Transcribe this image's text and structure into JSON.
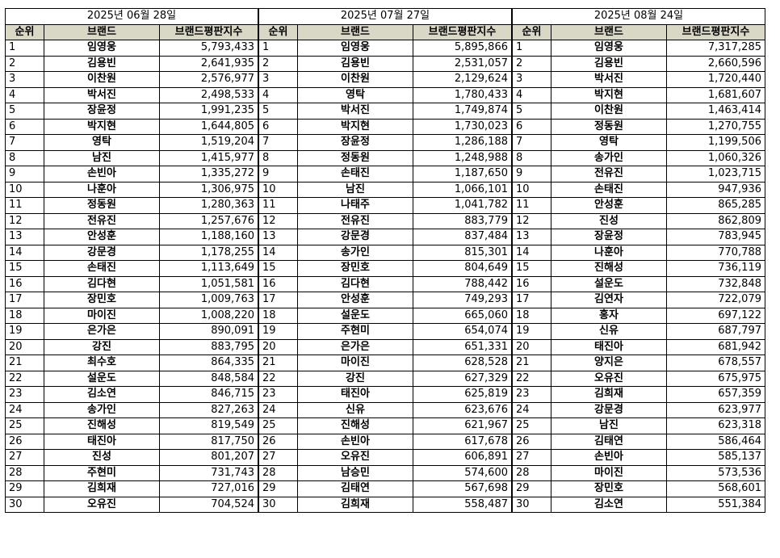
{
  "headers": {
    "rank": "순위",
    "brand": "브랜드",
    "score": "브랜드평판지수"
  },
  "blocks": [
    {
      "date": "2025년 06월 28일",
      "rows": [
        {
          "rank": "1",
          "brand": "임영웅",
          "score": "5,793,433"
        },
        {
          "rank": "2",
          "brand": "김용빈",
          "score": "2,641,935"
        },
        {
          "rank": "3",
          "brand": "이찬원",
          "score": "2,576,977"
        },
        {
          "rank": "4",
          "brand": "박서진",
          "score": "2,498,533"
        },
        {
          "rank": "5",
          "brand": "장윤정",
          "score": "1,991,235"
        },
        {
          "rank": "6",
          "brand": "박지현",
          "score": "1,644,805"
        },
        {
          "rank": "7",
          "brand": "영탁",
          "score": "1,519,204"
        },
        {
          "rank": "8",
          "brand": "남진",
          "score": "1,415,977"
        },
        {
          "rank": "9",
          "brand": "손빈아",
          "score": "1,335,272"
        },
        {
          "rank": "10",
          "brand": "나훈아",
          "score": "1,306,975"
        },
        {
          "rank": "11",
          "brand": "정동원",
          "score": "1,280,363"
        },
        {
          "rank": "12",
          "brand": "전유진",
          "score": "1,257,676"
        },
        {
          "rank": "13",
          "brand": "안성훈",
          "score": "1,188,160"
        },
        {
          "rank": "14",
          "brand": "강문경",
          "score": "1,178,255"
        },
        {
          "rank": "15",
          "brand": "손태진",
          "score": "1,113,649"
        },
        {
          "rank": "16",
          "brand": "김다현",
          "score": "1,051,581"
        },
        {
          "rank": "17",
          "brand": "장민호",
          "score": "1,009,763"
        },
        {
          "rank": "18",
          "brand": "마이진",
          "score": "1,008,220"
        },
        {
          "rank": "19",
          "brand": "은가은",
          "score": "890,091"
        },
        {
          "rank": "20",
          "brand": "강진",
          "score": "883,795"
        },
        {
          "rank": "21",
          "brand": "최수호",
          "score": "864,335"
        },
        {
          "rank": "22",
          "brand": "설운도",
          "score": "848,584"
        },
        {
          "rank": "23",
          "brand": "김소연",
          "score": "846,715"
        },
        {
          "rank": "24",
          "brand": "송가인",
          "score": "827,263"
        },
        {
          "rank": "25",
          "brand": "진해성",
          "score": "819,549"
        },
        {
          "rank": "26",
          "brand": "태진아",
          "score": "817,750"
        },
        {
          "rank": "27",
          "brand": "진성",
          "score": "801,207"
        },
        {
          "rank": "28",
          "brand": "주현미",
          "score": "731,743"
        },
        {
          "rank": "29",
          "brand": "김희재",
          "score": "727,016"
        },
        {
          "rank": "30",
          "brand": "오유진",
          "score": "704,524"
        }
      ]
    },
    {
      "date": "2025년 07월 27일",
      "rows": [
        {
          "rank": "1",
          "brand": "임영웅",
          "score": "5,895,866"
        },
        {
          "rank": "2",
          "brand": "김용빈",
          "score": "2,531,057"
        },
        {
          "rank": "3",
          "brand": "이찬원",
          "score": "2,129,624"
        },
        {
          "rank": "4",
          "brand": "영탁",
          "score": "1,780,433"
        },
        {
          "rank": "5",
          "brand": "박서진",
          "score": "1,749,874"
        },
        {
          "rank": "6",
          "brand": "박지현",
          "score": "1,730,023"
        },
        {
          "rank": "7",
          "brand": "장윤정",
          "score": "1,286,188"
        },
        {
          "rank": "8",
          "brand": "정동원",
          "score": "1,248,988"
        },
        {
          "rank": "9",
          "brand": "손태진",
          "score": "1,187,650"
        },
        {
          "rank": "10",
          "brand": "남진",
          "score": "1,066,101"
        },
        {
          "rank": "11",
          "brand": "나태주",
          "score": "1,041,782"
        },
        {
          "rank": "12",
          "brand": "전유진",
          "score": "883,779"
        },
        {
          "rank": "13",
          "brand": "강문경",
          "score": "837,484"
        },
        {
          "rank": "14",
          "brand": "송가인",
          "score": "815,301"
        },
        {
          "rank": "15",
          "brand": "장민호",
          "score": "804,649"
        },
        {
          "rank": "16",
          "brand": "김다현",
          "score": "788,442"
        },
        {
          "rank": "17",
          "brand": "안성훈",
          "score": "749,293"
        },
        {
          "rank": "18",
          "brand": "설운도",
          "score": "665,060"
        },
        {
          "rank": "19",
          "brand": "주현미",
          "score": "654,074"
        },
        {
          "rank": "20",
          "brand": "은가은",
          "score": "651,331"
        },
        {
          "rank": "21",
          "brand": "마이진",
          "score": "628,528"
        },
        {
          "rank": "22",
          "brand": "강진",
          "score": "627,329"
        },
        {
          "rank": "23",
          "brand": "태진아",
          "score": "625,819"
        },
        {
          "rank": "24",
          "brand": "신유",
          "score": "623,676"
        },
        {
          "rank": "25",
          "brand": "진해성",
          "score": "621,967"
        },
        {
          "rank": "26",
          "brand": "손빈아",
          "score": "617,678"
        },
        {
          "rank": "27",
          "brand": "오유진",
          "score": "606,891"
        },
        {
          "rank": "28",
          "brand": "남승민",
          "score": "574,600"
        },
        {
          "rank": "29",
          "brand": "김태연",
          "score": "567,698"
        },
        {
          "rank": "30",
          "brand": "김희재",
          "score": "558,487"
        }
      ]
    },
    {
      "date": "2025년 08월 24일",
      "rows": [
        {
          "rank": "1",
          "brand": "임영웅",
          "score": "7,317,285"
        },
        {
          "rank": "2",
          "brand": "김용빈",
          "score": "2,660,596"
        },
        {
          "rank": "3",
          "brand": "박서진",
          "score": "1,720,440"
        },
        {
          "rank": "4",
          "brand": "박지현",
          "score": "1,681,607"
        },
        {
          "rank": "5",
          "brand": "이찬원",
          "score": "1,463,414"
        },
        {
          "rank": "6",
          "brand": "정동원",
          "score": "1,270,755"
        },
        {
          "rank": "7",
          "brand": "영탁",
          "score": "1,199,506"
        },
        {
          "rank": "8",
          "brand": "송가인",
          "score": "1,060,326"
        },
        {
          "rank": "9",
          "brand": "전유진",
          "score": "1,023,715"
        },
        {
          "rank": "10",
          "brand": "손태진",
          "score": "947,936"
        },
        {
          "rank": "11",
          "brand": "안성훈",
          "score": "865,285"
        },
        {
          "rank": "12",
          "brand": "진성",
          "score": "862,809"
        },
        {
          "rank": "13",
          "brand": "장윤정",
          "score": "783,945"
        },
        {
          "rank": "14",
          "brand": "나훈아",
          "score": "770,788"
        },
        {
          "rank": "15",
          "brand": "진해성",
          "score": "736,119"
        },
        {
          "rank": "16",
          "brand": "설운도",
          "score": "732,848"
        },
        {
          "rank": "17",
          "brand": "김연자",
          "score": "722,079"
        },
        {
          "rank": "18",
          "brand": "홍자",
          "score": "697,122"
        },
        {
          "rank": "19",
          "brand": "신유",
          "score": "687,797"
        },
        {
          "rank": "20",
          "brand": "태진아",
          "score": "681,942"
        },
        {
          "rank": "21",
          "brand": "양지은",
          "score": "678,557"
        },
        {
          "rank": "22",
          "brand": "오유진",
          "score": "675,975"
        },
        {
          "rank": "23",
          "brand": "김희재",
          "score": "657,359"
        },
        {
          "rank": "24",
          "brand": "강문경",
          "score": "623,977"
        },
        {
          "rank": "25",
          "brand": "남진",
          "score": "623,318"
        },
        {
          "rank": "26",
          "brand": "김태연",
          "score": "586,464"
        },
        {
          "rank": "27",
          "brand": "손빈아",
          "score": "585,137"
        },
        {
          "rank": "28",
          "brand": "마이진",
          "score": "573,536"
        },
        {
          "rank": "29",
          "brand": "장민호",
          "score": "568,601"
        },
        {
          "rank": "30",
          "brand": "김소연",
          "score": "551,384"
        }
      ]
    }
  ]
}
